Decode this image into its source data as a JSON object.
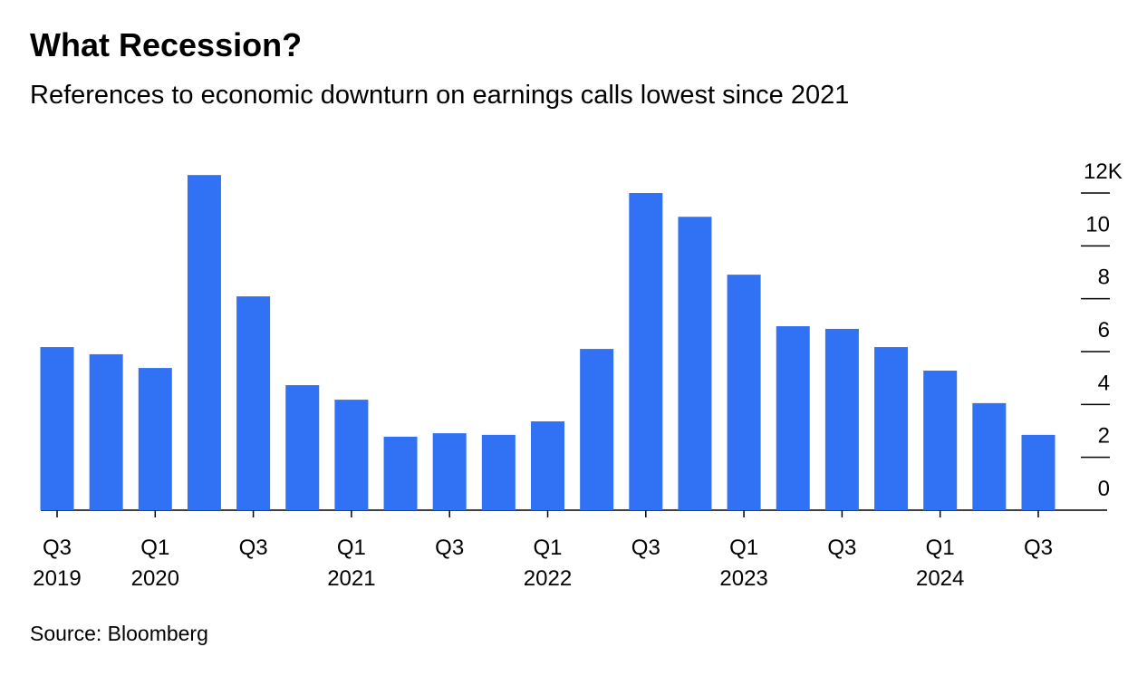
{
  "chart_data": {
    "type": "bar",
    "title": "What Recession?",
    "subtitle": "References to economic downturn on earnings calls lowest since 2021",
    "source": "Source: Bloomberg",
    "categories": [
      "Q3\n2019",
      null,
      "Q1\n2020",
      null,
      "Q3",
      null,
      "Q1\n2021",
      null,
      "Q3",
      null,
      "Q1\n2022",
      null,
      "Q3",
      null,
      "Q1\n2023",
      null,
      "Q3",
      null,
      "Q1\n2024",
      null,
      "Q3"
    ],
    "values": [
      6.17,
      5.9,
      5.38,
      12.68,
      8.09,
      4.73,
      4.18,
      2.78,
      2.91,
      2.85,
      3.36,
      6.1,
      12.0,
      11.1,
      8.91,
      6.96,
      6.86,
      6.17,
      5.28,
      4.05,
      2.85
    ],
    "color": "#3172f5",
    "ylim": [
      0,
      12
    ],
    "yticks": [
      0,
      2,
      4,
      6,
      8,
      10,
      {
        "value": 12,
        "label": "12K"
      }
    ],
    "y_axis_side": "right"
  }
}
